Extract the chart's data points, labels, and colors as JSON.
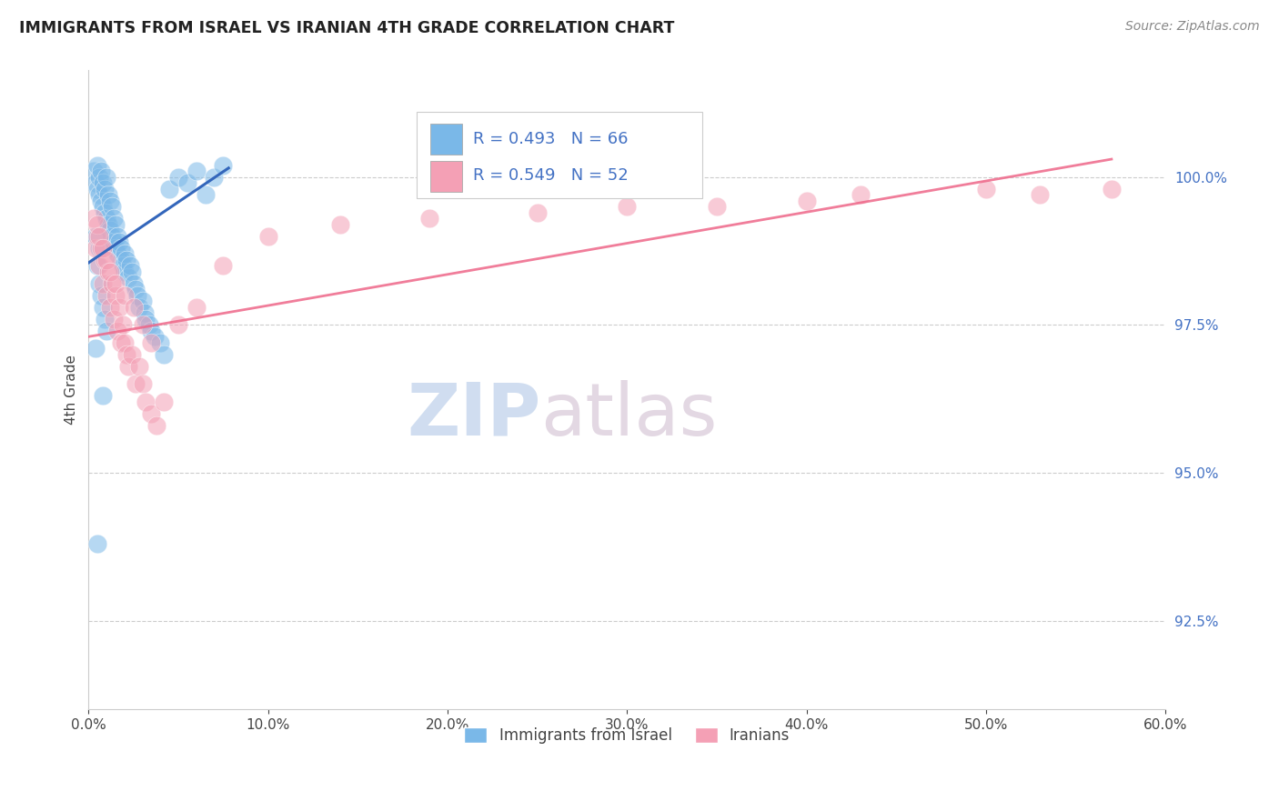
{
  "title": "IMMIGRANTS FROM ISRAEL VS IRANIAN 4TH GRADE CORRELATION CHART",
  "source": "Source: ZipAtlas.com",
  "ylabel": "4th Grade",
  "xlim": [
    0.0,
    60.0
  ],
  "ylim": [
    91.0,
    101.8
  ],
  "ytick_vals": [
    92.5,
    95.0,
    97.5,
    100.0
  ],
  "ytick_labels": [
    "92.5%",
    "95.0%",
    "97.5%",
    "100.0%"
  ],
  "xtick_vals": [
    0,
    10,
    20,
    30,
    40,
    50,
    60
  ],
  "xtick_labels": [
    "0.0%",
    "10.0%",
    "20.0%",
    "30.0%",
    "40.0%",
    "50.0%",
    "60.0%"
  ],
  "legend_label1": "Immigrants from Israel",
  "legend_label2": "Iranians",
  "R1": 0.493,
  "N1": 66,
  "R2": 0.549,
  "N2": 52,
  "color_blue": "#7ab8e8",
  "color_pink": "#f4a0b5",
  "color_blue_line": "#3366bb",
  "color_pink_line": "#ee6688",
  "israel_x": [
    0.3,
    0.4,
    0.5,
    0.5,
    0.6,
    0.6,
    0.7,
    0.7,
    0.8,
    0.8,
    0.9,
    0.9,
    1.0,
    1.0,
    1.1,
    1.1,
    1.2,
    1.2,
    1.3,
    1.3,
    1.4,
    1.4,
    1.5,
    1.5,
    1.6,
    1.6,
    1.7,
    1.8,
    1.8,
    1.9,
    2.0,
    2.0,
    2.1,
    2.2,
    2.3,
    2.4,
    2.5,
    2.6,
    2.7,
    2.8,
    3.0,
    3.1,
    3.2,
    3.4,
    3.5,
    3.7,
    4.0,
    4.2,
    4.5,
    5.0,
    5.5,
    6.0,
    6.5,
    7.0,
    7.5,
    0.4,
    0.5,
    0.6,
    0.7,
    0.8,
    0.9,
    1.0,
    0.8,
    0.5,
    0.4,
    0.6
  ],
  "israel_y": [
    100.1,
    99.9,
    100.2,
    99.8,
    100.0,
    99.7,
    100.1,
    99.6,
    99.9,
    99.5,
    99.8,
    99.4,
    100.0,
    99.3,
    99.7,
    99.2,
    99.6,
    99.1,
    99.5,
    99.0,
    99.3,
    98.9,
    99.2,
    98.8,
    99.0,
    98.7,
    98.9,
    98.6,
    98.8,
    98.5,
    98.7,
    98.4,
    98.6,
    98.3,
    98.5,
    98.4,
    98.2,
    98.1,
    98.0,
    97.8,
    97.9,
    97.7,
    97.6,
    97.5,
    97.4,
    97.3,
    97.2,
    97.0,
    99.8,
    100.0,
    99.9,
    100.1,
    99.7,
    100.0,
    100.2,
    99.0,
    98.5,
    98.2,
    98.0,
    97.8,
    97.6,
    97.4,
    96.3,
    93.8,
    97.1,
    98.8
  ],
  "iranian_x": [
    0.3,
    0.4,
    0.5,
    0.6,
    0.7,
    0.8,
    0.9,
    1.0,
    1.1,
    1.2,
    1.3,
    1.4,
    1.5,
    1.6,
    1.7,
    1.8,
    1.9,
    2.0,
    2.1,
    2.2,
    2.4,
    2.6,
    2.8,
    3.0,
    3.2,
    3.5,
    3.8,
    4.2,
    5.0,
    6.0,
    7.5,
    10.0,
    14.0,
    19.0,
    25.0,
    30.0,
    35.0,
    40.0,
    43.0,
    50.0,
    53.0,
    57.0,
    0.5,
    0.6,
    0.8,
    1.0,
    1.2,
    1.5,
    2.0,
    2.5,
    3.0,
    3.5
  ],
  "iranian_y": [
    99.3,
    98.8,
    99.0,
    98.5,
    98.8,
    98.2,
    98.6,
    98.0,
    98.4,
    97.8,
    98.2,
    97.6,
    98.0,
    97.4,
    97.8,
    97.2,
    97.5,
    97.2,
    97.0,
    96.8,
    97.0,
    96.5,
    96.8,
    96.5,
    96.2,
    96.0,
    95.8,
    96.2,
    97.5,
    97.8,
    98.5,
    99.0,
    99.2,
    99.3,
    99.4,
    99.5,
    99.5,
    99.6,
    99.7,
    99.8,
    99.7,
    99.8,
    99.2,
    99.0,
    98.8,
    98.6,
    98.4,
    98.2,
    98.0,
    97.8,
    97.5,
    97.2
  ],
  "israel_line_x": [
    0.0,
    7.8
  ],
  "israel_line_y": [
    98.55,
    100.15
  ],
  "iran_line_x": [
    0.0,
    57.0
  ],
  "iran_line_y": [
    97.3,
    100.3
  ]
}
